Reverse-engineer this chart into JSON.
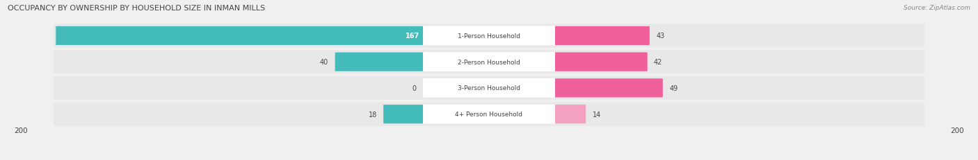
{
  "title": "OCCUPANCY BY OWNERSHIP BY HOUSEHOLD SIZE IN INMAN MILLS",
  "source": "Source: ZipAtlas.com",
  "categories": [
    "1-Person Household",
    "2-Person Household",
    "3-Person Household",
    "4+ Person Household"
  ],
  "owner_values": [
    167,
    40,
    0,
    18
  ],
  "renter_values": [
    43,
    42,
    49,
    14
  ],
  "owner_color": "#44BCBC",
  "renter_color_strong": "#F0609A",
  "renter_color_light": "#F4A0C0",
  "axis_max": 200,
  "bg_color": "#f0f0f0",
  "row_color": "#e8e8e8",
  "title_color": "#444444",
  "label_color": "#444444",
  "source_color": "#888888"
}
